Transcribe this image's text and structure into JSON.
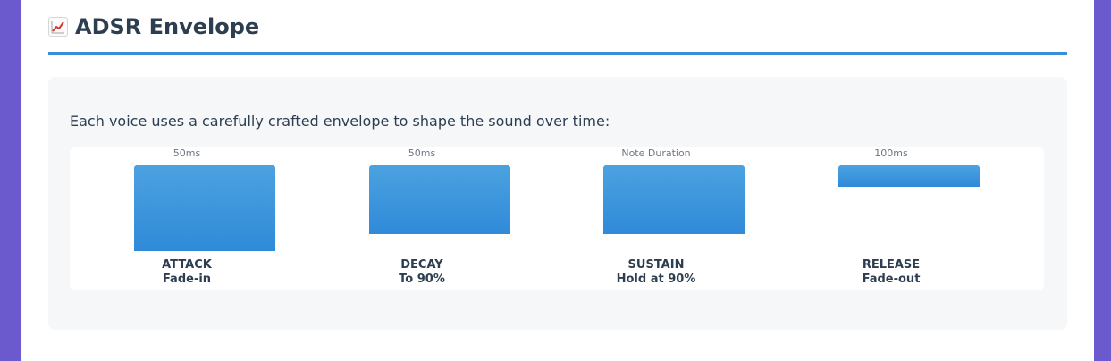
{
  "header": {
    "icon": "chart-increasing-icon",
    "title": "ADSR Envelope"
  },
  "intro": "Each voice uses a carefully crafted envelope to shape the sound over time:",
  "colors": {
    "accent": "#3a8ed8",
    "bar_top": "#4ca2e0",
    "bar_bottom": "#2f8ad8",
    "text": "#2c3e50"
  },
  "stages": [
    {
      "time": "50ms",
      "name": "ATTACK",
      "desc": "Fade-in",
      "level": 1.0
    },
    {
      "time": "50ms",
      "name": "DECAY",
      "desc": "To 90%",
      "level": 0.8
    },
    {
      "time": "Note Duration",
      "name": "SUSTAIN",
      "desc": "Hold at 90%",
      "level": 0.8
    },
    {
      "time": "100ms",
      "name": "RELEASE",
      "desc": "Fade-out",
      "level": 0.25
    }
  ]
}
